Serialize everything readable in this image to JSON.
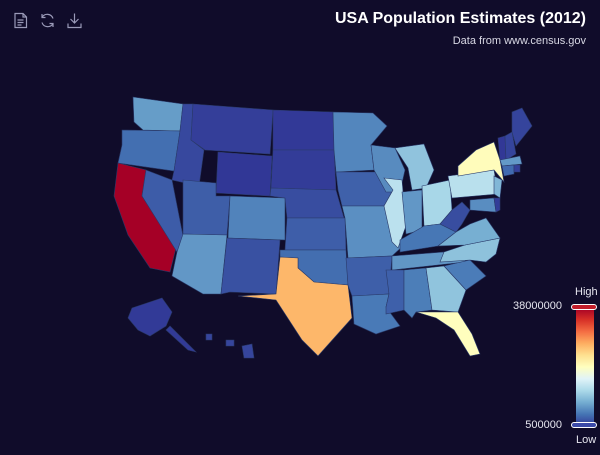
{
  "title": "USA Population Estimates (2012)",
  "subtitle": "Data from www.census.gov",
  "toolbox": {
    "icons": [
      "data-view-icon",
      "restore-icon",
      "save-image-icon"
    ]
  },
  "visual_map": {
    "high_label": "High",
    "low_label": "Low",
    "max": 38000000,
    "min": 500000,
    "max_text": "38000000",
    "min_text": "500000",
    "colors": [
      "#313695",
      "#4575b4",
      "#74add1",
      "#abd9e9",
      "#e0f3f8",
      "#ffffbf",
      "#fee090",
      "#fdae61",
      "#f46d43",
      "#d73027",
      "#a50026"
    ]
  },
  "colors": {
    "background": "#100c2a",
    "border": "#2a3a6a"
  },
  "chart_data": {
    "type": "choropleth",
    "title": "USA Population Estimates (2012)",
    "subtitle": "Data from www.census.gov",
    "value_range": [
      500000,
      38000000
    ],
    "regions": [
      {
        "name": "Washington",
        "value": 6897012
      },
      {
        "name": "Oregon",
        "value": 3899353
      },
      {
        "name": "California",
        "value": 38041430
      },
      {
        "name": "Idaho",
        "value": 1595728
      },
      {
        "name": "Nevada",
        "value": 2758931
      },
      {
        "name": "Montana",
        "value": 1005141
      },
      {
        "name": "Wyoming",
        "value": 576412
      },
      {
        "name": "Utah",
        "value": 2855287
      },
      {
        "name": "Arizona",
        "value": 6553255
      },
      {
        "name": "Colorado",
        "value": 5187582
      },
      {
        "name": "New Mexico",
        "value": 2085538
      },
      {
        "name": "North Dakota",
        "value": 699628
      },
      {
        "name": "South Dakota",
        "value": 833354
      },
      {
        "name": "Nebraska",
        "value": 1855525
      },
      {
        "name": "Kansas",
        "value": 2885905
      },
      {
        "name": "Oklahoma",
        "value": 3814820
      },
      {
        "name": "Texas",
        "value": 26059203
      },
      {
        "name": "Minnesota",
        "value": 5379139
      },
      {
        "name": "Iowa",
        "value": 3074186
      },
      {
        "name": "Missouri",
        "value": 6021988
      },
      {
        "name": "Arkansas",
        "value": 2949131
      },
      {
        "name": "Louisiana",
        "value": 4601893
      },
      {
        "name": "Wisconsin",
        "value": 5726398
      },
      {
        "name": "Illinois",
        "value": 12875255
      },
      {
        "name": "Michigan",
        "value": 9883360
      },
      {
        "name": "Indiana",
        "value": 6537334
      },
      {
        "name": "Ohio",
        "value": 11544225
      },
      {
        "name": "Kentucky",
        "value": 4380415
      },
      {
        "name": "Tennessee",
        "value": 6456243
      },
      {
        "name": "Mississippi",
        "value": 2984926
      },
      {
        "name": "Alabama",
        "value": 4822023
      },
      {
        "name": "Georgia",
        "value": 9919945
      },
      {
        "name": "Florida",
        "value": 19317568
      },
      {
        "name": "South Carolina",
        "value": 4723723
      },
      {
        "name": "North Carolina",
        "value": 9752073
      },
      {
        "name": "Virginia",
        "value": 8185867
      },
      {
        "name": "West Virginia",
        "value": 1855413
      },
      {
        "name": "Pennsylvania",
        "value": 12763536
      },
      {
        "name": "New York",
        "value": 19570261
      },
      {
        "name": "New Jersey",
        "value": 8864590
      },
      {
        "name": "Maryland",
        "value": 5884563
      },
      {
        "name": "Delaware",
        "value": 917092
      },
      {
        "name": "Vermont",
        "value": 626011
      },
      {
        "name": "New Hampshire",
        "value": 1320718
      },
      {
        "name": "Maine",
        "value": 1329192
      },
      {
        "name": "Massachusetts",
        "value": 6646144
      },
      {
        "name": "Connecticut",
        "value": 3590347
      },
      {
        "name": "Rhode Island",
        "value": 1050292
      },
      {
        "name": "Alaska",
        "value": 731449
      },
      {
        "name": "Hawaii",
        "value": 1392313
      }
    ]
  }
}
